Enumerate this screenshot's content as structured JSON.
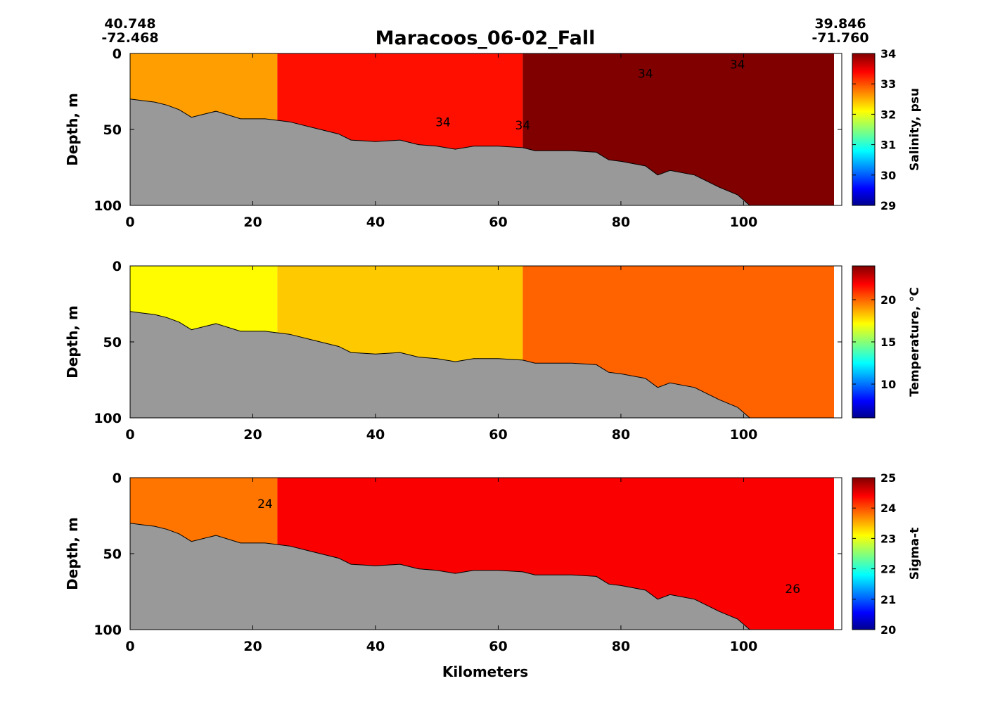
{
  "figure": {
    "title": "Maracoos_06-02_Fall",
    "start_coord": {
      "lat": "40.748",
      "lon": "-72.468"
    },
    "end_coord": {
      "lat": "39.846",
      "lon": "-71.760"
    },
    "xlabel": "Kilometers",
    "bathymetry_color": "#999999"
  },
  "chart_data": [
    {
      "type": "heatmap",
      "panel": "salinity",
      "title": "",
      "xlabel": "",
      "ylabel": "Depth, m",
      "colorbar_label": "Salinity, psu",
      "xlim": [
        0,
        116
      ],
      "ylim": [
        100,
        0
      ],
      "y_reversed": true,
      "xticks": [
        0,
        20,
        40,
        60,
        80,
        100
      ],
      "yticks": [
        0,
        50,
        100
      ],
      "clim": [
        29,
        34
      ],
      "cbar_ticks": [
        29,
        30,
        31,
        32,
        33,
        34
      ],
      "colormap": "jet",
      "grid": false,
      "contour_labels": [
        {
          "text": "34",
          "x": 51,
          "y": 48
        },
        {
          "text": "34",
          "x": 64,
          "y": 50
        },
        {
          "text": "34",
          "x": 84,
          "y": 16
        },
        {
          "text": "34",
          "x": 99,
          "y": 10
        }
      ],
      "bathymetry": [
        [
          0,
          30
        ],
        [
          2,
          31
        ],
        [
          4,
          32
        ],
        [
          6,
          34
        ],
        [
          8,
          37
        ],
        [
          10,
          42
        ],
        [
          12,
          40
        ],
        [
          14,
          38
        ],
        [
          18,
          43
        ],
        [
          22,
          43
        ],
        [
          26,
          45
        ],
        [
          30,
          49
        ],
        [
          34,
          53
        ],
        [
          36,
          57
        ],
        [
          40,
          58
        ],
        [
          44,
          57
        ],
        [
          47,
          60
        ],
        [
          50,
          61
        ],
        [
          53,
          63
        ],
        [
          56,
          61
        ],
        [
          60,
          61
        ],
        [
          64,
          62
        ],
        [
          66,
          64
        ],
        [
          72,
          64
        ],
        [
          76,
          65
        ],
        [
          78,
          70
        ],
        [
          80,
          71
        ],
        [
          84,
          74
        ],
        [
          86,
          80
        ],
        [
          88,
          77
        ],
        [
          92,
          80
        ],
        [
          96,
          88
        ],
        [
          99,
          93
        ],
        [
          101,
          100
        ]
      ],
      "regions": [
        {
          "x": [
            0,
            24
          ],
          "value": 32.6
        },
        {
          "x": [
            24,
            64
          ],
          "value": 33.3
        },
        {
          "x": [
            64,
            116
          ],
          "value": 34.0
        }
      ]
    },
    {
      "type": "heatmap",
      "panel": "temperature",
      "title": "",
      "xlabel": "",
      "ylabel": "Depth, m",
      "colorbar_label": "Temperature, °C",
      "xlim": [
        0,
        116
      ],
      "ylim": [
        100,
        0
      ],
      "y_reversed": true,
      "xticks": [
        0,
        20,
        40,
        60,
        80,
        100
      ],
      "yticks": [
        0,
        50,
        100
      ],
      "clim": [
        6,
        24
      ],
      "cbar_ticks": [
        10,
        15,
        20
      ],
      "colormap": "jet",
      "grid": false,
      "contour_labels": [],
      "bathymetry": [
        [
          0,
          30
        ],
        [
          2,
          31
        ],
        [
          4,
          32
        ],
        [
          6,
          34
        ],
        [
          8,
          37
        ],
        [
          10,
          42
        ],
        [
          12,
          40
        ],
        [
          14,
          38
        ],
        [
          18,
          43
        ],
        [
          22,
          43
        ],
        [
          26,
          45
        ],
        [
          30,
          49
        ],
        [
          34,
          53
        ],
        [
          36,
          57
        ],
        [
          40,
          58
        ],
        [
          44,
          57
        ],
        [
          47,
          60
        ],
        [
          50,
          61
        ],
        [
          53,
          63
        ],
        [
          56,
          61
        ],
        [
          60,
          61
        ],
        [
          64,
          62
        ],
        [
          66,
          64
        ],
        [
          72,
          64
        ],
        [
          76,
          65
        ],
        [
          78,
          70
        ],
        [
          80,
          71
        ],
        [
          84,
          74
        ],
        [
          86,
          80
        ],
        [
          88,
          77
        ],
        [
          92,
          80
        ],
        [
          96,
          88
        ],
        [
          99,
          93
        ],
        [
          101,
          100
        ]
      ],
      "regions": [
        {
          "x": [
            0,
            24
          ],
          "value": 17.3
        },
        {
          "x": [
            24,
            64
          ],
          "value": 18.2
        },
        {
          "x": [
            64,
            116
          ],
          "value": 20.0
        }
      ]
    },
    {
      "type": "heatmap",
      "panel": "sigma-t",
      "title": "",
      "xlabel": "Kilometers",
      "ylabel": "Depth, m",
      "colorbar_label": "Sigma-t",
      "xlim": [
        0,
        116
      ],
      "ylim": [
        100,
        0
      ],
      "y_reversed": true,
      "xticks": [
        0,
        20,
        40,
        60,
        80,
        100
      ],
      "yticks": [
        0,
        50,
        100
      ],
      "clim": [
        20,
        25
      ],
      "cbar_ticks": [
        20,
        21,
        22,
        23,
        24,
        25
      ],
      "colormap": "jet",
      "grid": false,
      "contour_labels": [
        {
          "text": "24",
          "x": 22,
          "y": 20
        },
        {
          "text": "26",
          "x": 108,
          "y": 76
        }
      ],
      "bathymetry": [
        [
          0,
          30
        ],
        [
          2,
          31
        ],
        [
          4,
          32
        ],
        [
          6,
          34
        ],
        [
          8,
          37
        ],
        [
          10,
          42
        ],
        [
          12,
          40
        ],
        [
          14,
          38
        ],
        [
          18,
          43
        ],
        [
          22,
          43
        ],
        [
          26,
          45
        ],
        [
          30,
          49
        ],
        [
          34,
          53
        ],
        [
          36,
          57
        ],
        [
          40,
          58
        ],
        [
          44,
          57
        ],
        [
          47,
          60
        ],
        [
          50,
          61
        ],
        [
          53,
          63
        ],
        [
          56,
          61
        ],
        [
          60,
          61
        ],
        [
          64,
          62
        ],
        [
          66,
          64
        ],
        [
          72,
          64
        ],
        [
          76,
          65
        ],
        [
          78,
          70
        ],
        [
          80,
          71
        ],
        [
          84,
          74
        ],
        [
          86,
          80
        ],
        [
          88,
          77
        ],
        [
          92,
          80
        ],
        [
          96,
          88
        ],
        [
          99,
          93
        ],
        [
          101,
          100
        ]
      ],
      "regions": [
        {
          "x": [
            0,
            24
          ],
          "value": 23.8
        },
        {
          "x": [
            24,
            116
          ],
          "value": 24.4
        }
      ]
    }
  ]
}
